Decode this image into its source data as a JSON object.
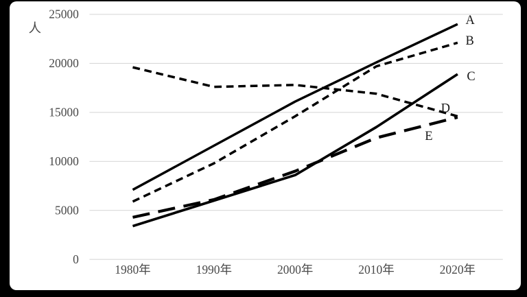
{
  "window": {
    "background_color": "#000000",
    "card_background_color": "#ffffff"
  },
  "chart_data": {
    "type": "line",
    "title": "",
    "xlabel": "",
    "ylabel": "人",
    "unit_label": "人",
    "categories": [
      "1980年",
      "1990年",
      "2000年",
      "2010年",
      "2020年"
    ],
    "series": [
      {
        "name": "A",
        "values": [
          7100,
          11600,
          16100,
          20100,
          24000
        ],
        "style": "solid",
        "width": 3.6,
        "label_dx": 12,
        "label_dy": -6
      },
      {
        "name": "B",
        "values": [
          5900,
          9800,
          14600,
          19700,
          22100
        ],
        "style": "dash",
        "width": 3.6,
        "label_dx": 12,
        "label_dy": -3
      },
      {
        "name": "C",
        "values": [
          3400,
          6000,
          8600,
          13500,
          18900
        ],
        "style": "solid",
        "width": 3.8,
        "label_dx": 14,
        "label_dy": 3
      },
      {
        "name": "D",
        "values": [
          19600,
          17600,
          17800,
          16900,
          14600
        ],
        "style": "dash",
        "width": 3.6,
        "label_dx": -25,
        "label_dy": -12
      },
      {
        "name": "E",
        "values": [
          4300,
          6100,
          9000,
          12400,
          14500
        ],
        "style": "longdash",
        "width": 4.4,
        "label_dx": -49,
        "label_dy": 28
      }
    ],
    "ylim": [
      0,
      25000
    ],
    "ytick_step": 5000,
    "yticks": [
      "0",
      "5000",
      "10000",
      "15000",
      "20000",
      "25000"
    ],
    "ytick_values": [
      0,
      5000,
      10000,
      15000,
      20000,
      25000
    ],
    "grid": true,
    "legend_position": "labels-at-line-ends",
    "colors": {
      "line": "#000000",
      "grid": "#d9d9d9",
      "tick_text": "#494949",
      "series_label_text": "#1a1a1a"
    }
  }
}
